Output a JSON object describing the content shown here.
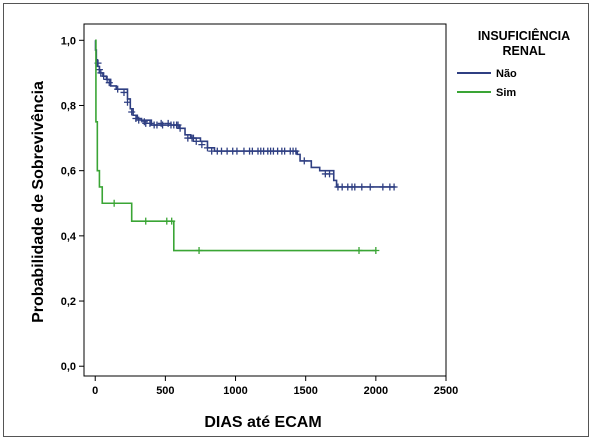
{
  "chart_data": {
    "type": "line",
    "subtype": "step",
    "title": "",
    "xlabel": "DIAS até ECAM",
    "ylabel": "Probabilidade de Sobrevivência",
    "xlim": [
      -80,
      2500
    ],
    "ylim": [
      -0.03,
      1.05
    ],
    "x_ticks": [
      0,
      500,
      1000,
      1500,
      2000,
      2500
    ],
    "x_tick_labels": [
      "0",
      "500",
      "1000",
      "1500",
      "2000",
      "2500"
    ],
    "y_ticks": [
      0.0,
      0.2,
      0.4,
      0.6,
      0.8,
      1.0
    ],
    "y_tick_labels": [
      "0,0",
      "0,2",
      "0,4",
      "0,6",
      "0,8",
      "1,0"
    ],
    "grid": false,
    "legend": {
      "title_lines": [
        "INSUFICIÊNCIA",
        "RENAL"
      ],
      "placement": "top-right, outside plot"
    },
    "series": [
      {
        "name": "Não",
        "color": "#2f3f82",
        "steps": [
          [
            0,
            1.0
          ],
          [
            2,
            0.97
          ],
          [
            8,
            0.94
          ],
          [
            15,
            0.92
          ],
          [
            30,
            0.9
          ],
          [
            55,
            0.89
          ],
          [
            80,
            0.88
          ],
          [
            110,
            0.86
          ],
          [
            150,
            0.85
          ],
          [
            230,
            0.82
          ],
          [
            250,
            0.79
          ],
          [
            270,
            0.77
          ],
          [
            300,
            0.76
          ],
          [
            330,
            0.755
          ],
          [
            400,
            0.74
          ],
          [
            450,
            0.74
          ],
          [
            600,
            0.73
          ],
          [
            640,
            0.71
          ],
          [
            680,
            0.7
          ],
          [
            750,
            0.69
          ],
          [
            800,
            0.67
          ],
          [
            850,
            0.66
          ],
          [
            1440,
            0.65
          ],
          [
            1460,
            0.63
          ],
          [
            1540,
            0.61
          ],
          [
            1600,
            0.6
          ],
          [
            1700,
            0.57
          ],
          [
            1720,
            0.55
          ],
          [
            2140,
            0.55
          ]
        ],
        "censored": [
          [
            20,
            0.93
          ],
          [
            30,
            0.91
          ],
          [
            40,
            0.9
          ],
          [
            60,
            0.89
          ],
          [
            85,
            0.88
          ],
          [
            100,
            0.87
          ],
          [
            160,
            0.85
          ],
          [
            205,
            0.84
          ],
          [
            230,
            0.81
          ],
          [
            260,
            0.78
          ],
          [
            290,
            0.76
          ],
          [
            310,
            0.755
          ],
          [
            350,
            0.75
          ],
          [
            360,
            0.745
          ],
          [
            390,
            0.745
          ],
          [
            420,
            0.74
          ],
          [
            440,
            0.74
          ],
          [
            470,
            0.745
          ],
          [
            480,
            0.74
          ],
          [
            520,
            0.745
          ],
          [
            540,
            0.74
          ],
          [
            560,
            0.74
          ],
          [
            580,
            0.74
          ],
          [
            590,
            0.74
          ],
          [
            605,
            0.73
          ],
          [
            660,
            0.7
          ],
          [
            690,
            0.7
          ],
          [
            700,
            0.7
          ],
          [
            720,
            0.69
          ],
          [
            760,
            0.68
          ],
          [
            800,
            0.67
          ],
          [
            830,
            0.66
          ],
          [
            870,
            0.66
          ],
          [
            900,
            0.66
          ],
          [
            940,
            0.66
          ],
          [
            980,
            0.66
          ],
          [
            1010,
            0.66
          ],
          [
            1060,
            0.66
          ],
          [
            1100,
            0.66
          ],
          [
            1120,
            0.66
          ],
          [
            1160,
            0.66
          ],
          [
            1180,
            0.66
          ],
          [
            1200,
            0.66
          ],
          [
            1230,
            0.66
          ],
          [
            1250,
            0.66
          ],
          [
            1270,
            0.66
          ],
          [
            1300,
            0.66
          ],
          [
            1330,
            0.66
          ],
          [
            1350,
            0.66
          ],
          [
            1390,
            0.66
          ],
          [
            1410,
            0.66
          ],
          [
            1430,
            0.66
          ],
          [
            1490,
            0.63
          ],
          [
            1640,
            0.59
          ],
          [
            1670,
            0.59
          ],
          [
            1730,
            0.55
          ],
          [
            1760,
            0.55
          ],
          [
            1800,
            0.55
          ],
          [
            1830,
            0.55
          ],
          [
            1850,
            0.55
          ],
          [
            1900,
            0.55
          ],
          [
            1960,
            0.55
          ],
          [
            2050,
            0.55
          ],
          [
            2100,
            0.55
          ],
          [
            2130,
            0.55
          ]
        ]
      },
      {
        "name": "Sim",
        "color": "#3aa535",
        "steps": [
          [
            0,
            1.0
          ],
          [
            5,
            0.75
          ],
          [
            15,
            0.6
          ],
          [
            30,
            0.55
          ],
          [
            50,
            0.5
          ],
          [
            260,
            0.445
          ],
          [
            560,
            0.355
          ],
          [
            2000,
            0.355
          ]
        ],
        "censored": [
          [
            135,
            0.5
          ],
          [
            360,
            0.445
          ],
          [
            510,
            0.445
          ],
          [
            545,
            0.445
          ],
          [
            740,
            0.355
          ],
          [
            1880,
            0.355
          ],
          [
            2000,
            0.355
          ]
        ]
      }
    ]
  }
}
